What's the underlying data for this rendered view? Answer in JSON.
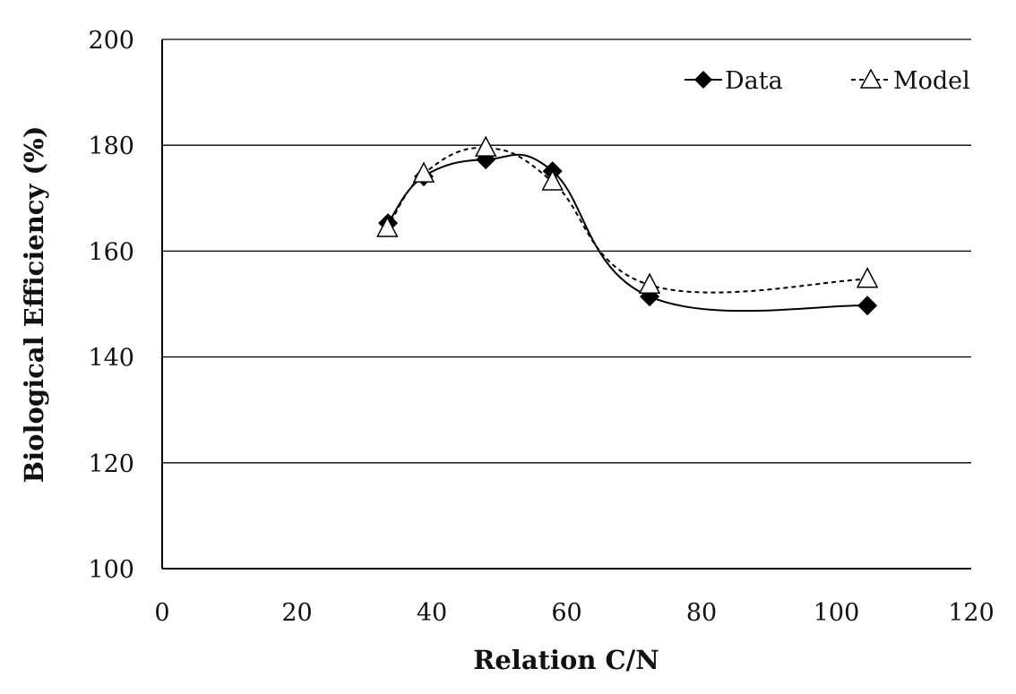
{
  "chart_data": {
    "type": "line",
    "title": "",
    "xlabel": "Relation C/N",
    "ylabel": "Biological Efficiency (%)",
    "xlim": [
      0,
      120
    ],
    "ylim": [
      100,
      200
    ],
    "xticks": [
      0,
      20,
      40,
      60,
      80,
      100,
      120
    ],
    "yticks": [
      100,
      120,
      140,
      160,
      180,
      200
    ],
    "grid": "horizontal",
    "legend_position": "top-right",
    "series": [
      {
        "name": "Data",
        "marker": "filled-diamond",
        "line": "solid",
        "color": "#000000",
        "x": [
          33.5,
          38.8,
          48.0,
          57.9,
          72.3,
          104.6
        ],
        "y": [
          165.3,
          174.1,
          177.3,
          175.1,
          151.4,
          149.7
        ]
      },
      {
        "name": "Model",
        "marker": "open-triangle",
        "line": "dashed",
        "color": "#000000",
        "x": [
          33.4,
          38.8,
          48.0,
          57.9,
          72.3,
          104.6
        ],
        "y": [
          164.3,
          174.6,
          179.5,
          173.1,
          153.6,
          154.7
        ]
      }
    ]
  }
}
